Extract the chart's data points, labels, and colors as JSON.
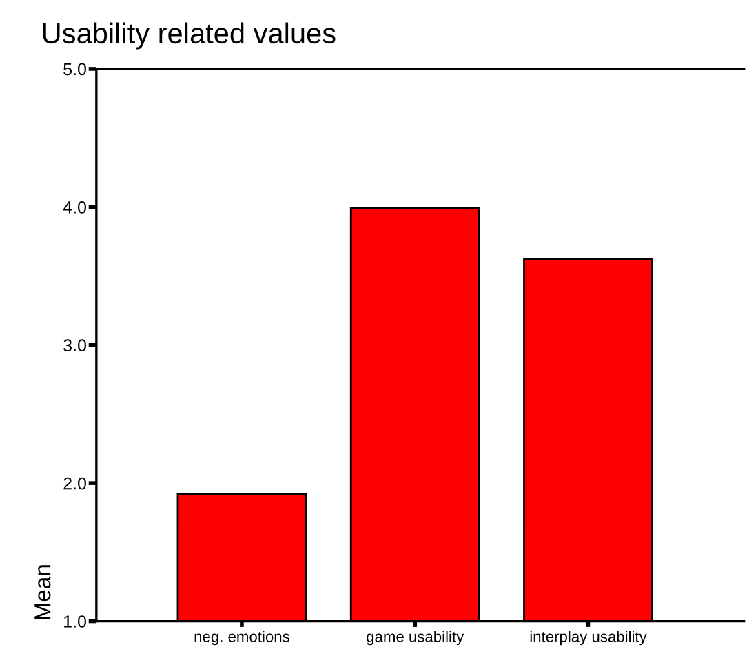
{
  "chart_data": {
    "type": "bar",
    "title": "Usability related values",
    "ylabel": "Mean",
    "categories": [
      "neg. emotions",
      "game usability",
      "interplay usability"
    ],
    "values": [
      1.92,
      3.99,
      3.62
    ],
    "color": "#ff0000",
    "ylim": [
      1.0,
      5.0
    ],
    "yticks": [
      {
        "value": 1,
        "label": "1.0"
      },
      {
        "value": 2,
        "label": "2.0"
      },
      {
        "value": 3,
        "label": "3.0"
      },
      {
        "value": 4,
        "label": "4.0"
      },
      {
        "value": 5,
        "label": "5.0"
      }
    ],
    "grid": false,
    "legend": false
  }
}
